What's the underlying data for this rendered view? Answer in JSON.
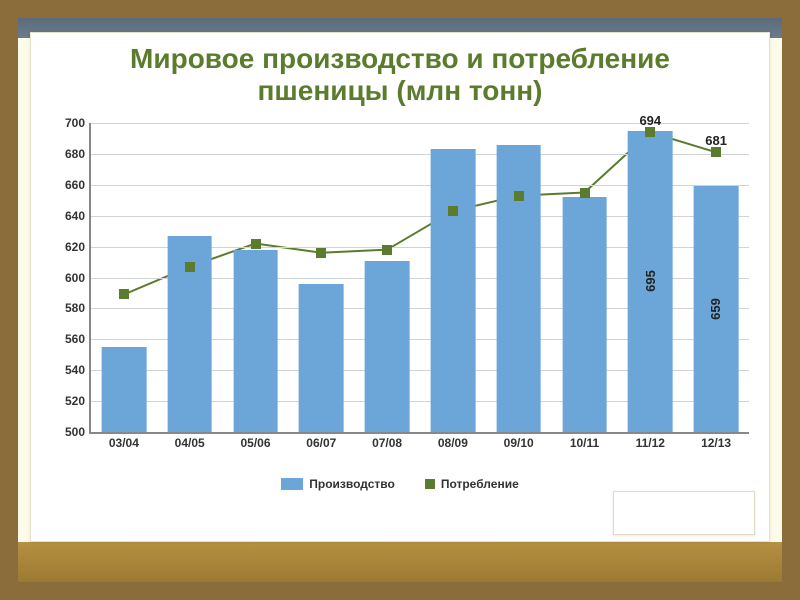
{
  "chart": {
    "type": "bar+line",
    "title": "Мировое производство и потребление пшеницы (млн тонн)",
    "title_color": "#5b7c2c",
    "title_fontsize": 28,
    "background_color": "#ffffff",
    "frame_color": "#8a6d3b",
    "axis_color": "#888888",
    "grid_color": "#cfd4d8",
    "tick_label_fontsize": 12,
    "categories": [
      "03/04",
      "04/05",
      "05/06",
      "06/07",
      "07/08",
      "08/09",
      "09/10",
      "10/11",
      "11/12",
      "12/13"
    ],
    "ylim": [
      500,
      700
    ],
    "ytick_step": 20,
    "yticks": [
      500,
      520,
      540,
      560,
      580,
      600,
      620,
      640,
      660,
      680,
      700
    ],
    "bar_series": {
      "name": "Производство",
      "color": "#6ca6d9",
      "width_pct": 6.8,
      "values": [
        555,
        627,
        618,
        596,
        611,
        683,
        686,
        652,
        695,
        659
      ],
      "value_labels": [
        null,
        null,
        null,
        null,
        null,
        null,
        null,
        null,
        "695",
        "659"
      ]
    },
    "line_series": {
      "name": "Потребление",
      "color": "#5b7c2c",
      "marker": "square",
      "marker_size": 10,
      "line_width": 2,
      "values": [
        589,
        607,
        622,
        616,
        618,
        643,
        653,
        655,
        694,
        681
      ],
      "value_labels": [
        null,
        null,
        null,
        null,
        null,
        null,
        null,
        null,
        "694",
        "681"
      ]
    },
    "legend": {
      "items": [
        "Производство",
        "Потребление"
      ]
    }
  }
}
